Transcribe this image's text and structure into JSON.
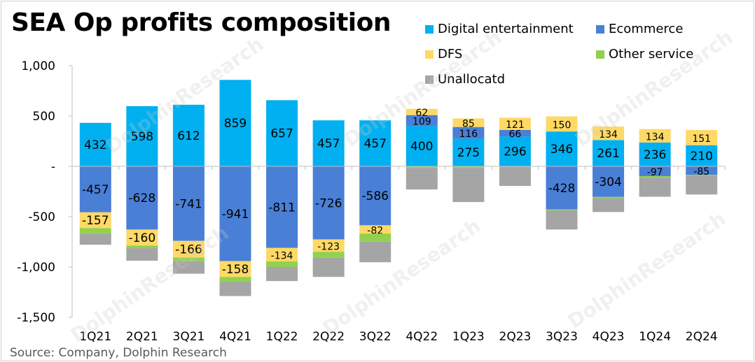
{
  "title": "SEA Op profits composition",
  "source": "Source: Company, Dolphin Research",
  "watermark": "DolphinResearch",
  "legend": [
    {
      "name": "Digital entertainment",
      "color": "#00B0F0"
    },
    {
      "name": "Ecommerce",
      "color": "#4A7FD6"
    },
    {
      "name": "DFS",
      "color": "#FFD966"
    },
    {
      "name": "Other service",
      "color": "#92D050"
    },
    {
      "name": "Unallocatd",
      "color": "#A5A5A5"
    }
  ],
  "chart_data": {
    "type": "bar",
    "stacked": true,
    "title": "SEA Op profits composition",
    "categories": [
      "1Q21",
      "2Q21",
      "3Q21",
      "4Q21",
      "1Q22",
      "2Q22",
      "3Q22",
      "4Q22",
      "1Q23",
      "2Q23",
      "3Q23",
      "4Q23",
      "1Q24",
      "2Q24"
    ],
    "ylim": [
      -1500,
      1000
    ],
    "yticks": [
      1000,
      500,
      0,
      -500,
      -1000,
      -1500
    ],
    "ytick_labels": [
      "1,000",
      "500",
      "-",
      "-500",
      "-1,000",
      "-1,500"
    ],
    "series": [
      {
        "name": "Digital entertainment",
        "color": "#00B0F0",
        "values": [
          432,
          598,
          612,
          859,
          657,
          457,
          457,
          400,
          275,
          296,
          346,
          261,
          236,
          210
        ],
        "labels": [
          "432",
          "598",
          "612",
          "859",
          "657",
          "457",
          "457",
          "400",
          "275",
          "296",
          "346",
          "261",
          "236",
          "210"
        ]
      },
      {
        "name": "Ecommerce",
        "color": "#4A7FD6",
        "values": [
          -457,
          -628,
          -741,
          -941,
          -811,
          -726,
          -586,
          109,
          116,
          66,
          -428,
          -304,
          -97,
          -85
        ],
        "labels": [
          "-457",
          "-628",
          "-741",
          "-941",
          "-811",
          "-726",
          "-586",
          "109",
          "116",
          "66",
          "-428",
          "-304",
          "-97",
          "-85"
        ]
      },
      {
        "name": "DFS",
        "color": "#FFD966",
        "values": [
          -157,
          -160,
          -166,
          -158,
          -134,
          -123,
          -82,
          62,
          85,
          121,
          150,
          134,
          134,
          151
        ],
        "labels": [
          "-157",
          "-160",
          "-166",
          "-158",
          "-134",
          "-123",
          "-82",
          "62",
          "85",
          "121",
          "150",
          "134",
          "134",
          "151"
        ]
      },
      {
        "name": "Other service",
        "color": "#92D050",
        "values": [
          -55,
          -25,
          -35,
          -50,
          -55,
          -60,
          -80,
          -15,
          -15,
          -5,
          -10,
          -15,
          -15,
          -5
        ],
        "labels": []
      },
      {
        "name": "Unallocatd",
        "color": "#A5A5A5",
        "values": [
          -110,
          -125,
          -125,
          -140,
          -140,
          -190,
          -205,
          -215,
          -340,
          -190,
          -190,
          -135,
          -190,
          -190
        ],
        "labels": []
      }
    ]
  }
}
